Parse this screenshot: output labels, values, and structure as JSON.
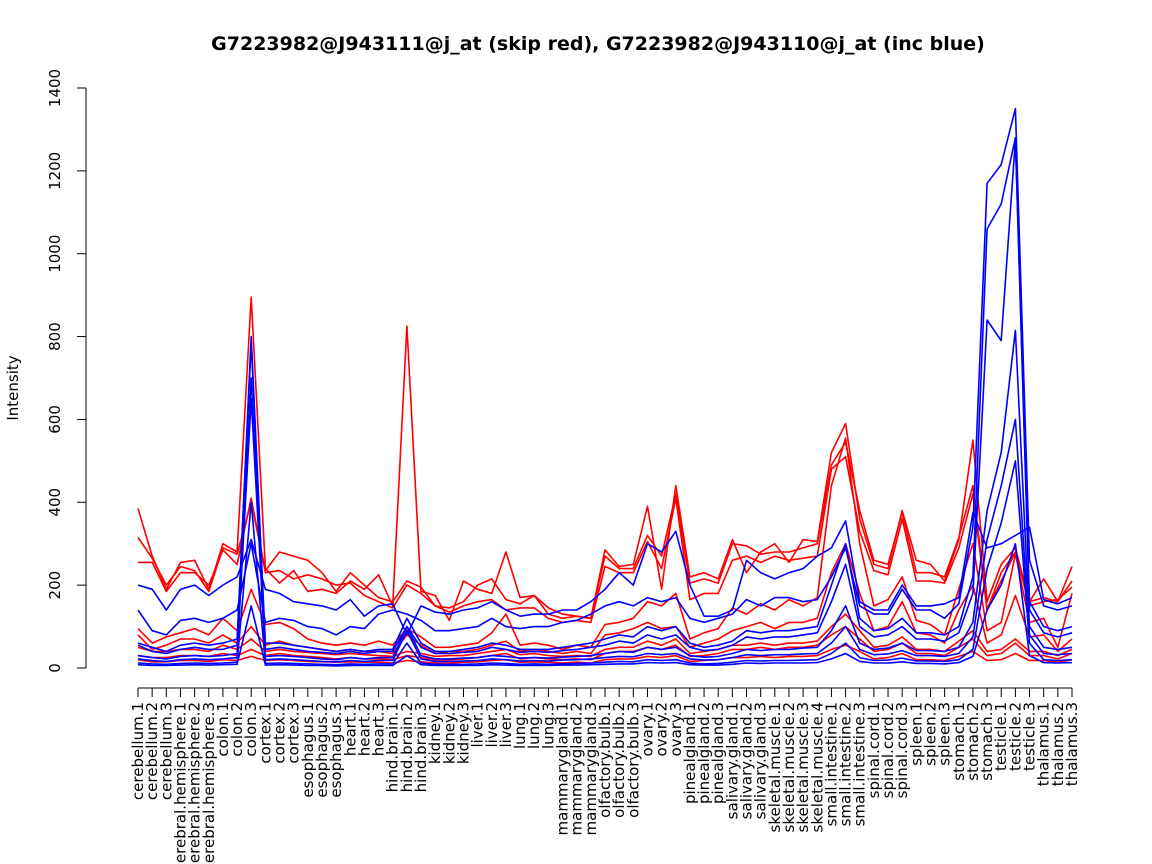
{
  "chart_data": {
    "type": "line",
    "title": "G7223982@J943111@j_at (skip red), G7223982@J943110@j_at (inc blue)",
    "xlabel": "",
    "ylabel": "Intensity",
    "ylim": [
      0,
      1400
    ],
    "yticks": [
      0,
      200,
      400,
      600,
      800,
      1000,
      1200,
      1400
    ],
    "grid": false,
    "legend": "none",
    "colors": {
      "skip": "#ff0000",
      "inc": "#0000ff"
    },
    "categories": [
      "cerebellum.1",
      "cerebellum.2",
      "cerebellum.3",
      "cerebral.hemisphere.1",
      "cerebral.hemisphere.2",
      "cerebral.hemisphere.3",
      "colon.1",
      "colon.2",
      "colon.3",
      "cortex.1",
      "cortex.2",
      "cortex.3",
      "esophagus.1",
      "esophagus.2",
      "esophagus.3",
      "heart.1",
      "heart.2",
      "heart.3",
      "hind.brain.1",
      "hind.brain.2",
      "hind.brain.3",
      "kidney.1",
      "kidney.2",
      "kidney.3",
      "liver.1",
      "liver.2",
      "liver.3",
      "lung.1",
      "lung.2",
      "lung.3",
      "mammarygland.1",
      "mammarygland.2",
      "mammarygland.3",
      "olfactory.bulb.1",
      "olfactory.bulb.2",
      "olfactory.bulb.3",
      "ovary.1",
      "ovary.2",
      "ovary.3",
      "pinealgland.1",
      "pinealgland.2",
      "pinealgland.3",
      "salivary.gland.1",
      "salivary.gland.2",
      "salivary.gland.3",
      "skeletal.muscle.1",
      "skeletal.muscle.2",
      "skeletal.muscle.3",
      "skeletal.muscle.4",
      "small.intestine.1",
      "small.intestine.2",
      "small.intestine.3",
      "spinal.cord.1",
      "spinal.cord.2",
      "spinal.cord.3",
      "spleen.1",
      "spleen.2",
      "spleen.3",
      "stomach.1",
      "stomach.2",
      "stomach.3",
      "testicle.1",
      "testicle.2",
      "testicle.3",
      "thalamus.1",
      "thalamus.2",
      "thalamus.3"
    ],
    "series": [
      {
        "group": "skip",
        "values": [
          385,
          270,
          190,
          255,
          260,
          190,
          300,
          280,
          895,
          240,
          205,
          235,
          185,
          190,
          180,
          210,
          190,
          225,
          150,
          825,
          185,
          175,
          115,
          210,
          190,
          180,
          280,
          170,
          175,
          130,
          120,
          125,
          120,
          285,
          245,
          250,
          390,
          190,
          440,
          220,
          230,
          215,
          310,
          230,
          280,
          300,
          255,
          310,
          305,
          520,
          590,
          360,
          250,
          240,
          380,
          260,
          250,
          210,
          310,
          550,
          160,
          250,
          290,
          160,
          215,
          160,
          245
        ]
      },
      {
        "group": "skip",
        "values": [
          315,
          265,
          200,
          245,
          235,
          185,
          290,
          275,
          400,
          235,
          280,
          270,
          260,
          230,
          185,
          230,
          200,
          170,
          160,
          210,
          195,
          150,
          145,
          160,
          200,
          215,
          165,
          155,
          175,
          145,
          130,
          125,
          120,
          270,
          240,
          240,
          320,
          270,
          420,
          205,
          215,
          205,
          300,
          295,
          275,
          280,
          280,
          290,
          300,
          490,
          545,
          380,
          260,
          250,
          375,
          230,
          230,
          220,
          315,
          440,
          140,
          230,
          280,
          160,
          170,
          160,
          210
        ]
      },
      {
        "group": "skip",
        "values": [
          255,
          255,
          185,
          230,
          230,
          200,
          285,
          250,
          410,
          230,
          235,
          215,
          225,
          215,
          200,
          205,
          175,
          160,
          145,
          200,
          180,
          150,
          135,
          150,
          160,
          165,
          140,
          145,
          145,
          120,
          110,
          115,
          110,
          245,
          230,
          230,
          305,
          240,
          410,
          165,
          180,
          180,
          260,
          270,
          255,
          270,
          260,
          265,
          270,
          480,
          510,
          330,
          235,
          225,
          360,
          210,
          210,
          205,
          290,
          420,
          140,
          210,
          280,
          150,
          160,
          165,
          195
        ]
      },
      {
        "group": "skip",
        "values": [
          95,
          60,
          75,
          85,
          95,
          80,
          120,
          90,
          190,
          105,
          110,
          95,
          70,
          60,
          55,
          60,
          55,
          65,
          55,
          95,
          75,
          50,
          50,
          55,
          60,
          85,
          130,
          55,
          60,
          55,
          45,
          55,
          50,
          105,
          110,
          120,
          160,
          150,
          180,
          70,
          85,
          95,
          145,
          130,
          155,
          140,
          165,
          150,
          170,
          440,
          555,
          300,
          150,
          165,
          220,
          115,
          105,
          80,
          190,
          300,
          90,
          110,
          275,
          110,
          120,
          50,
          180
        ]
      },
      {
        "group": "skip",
        "values": [
          80,
          45,
          55,
          70,
          70,
          60,
          80,
          60,
          100,
          55,
          65,
          55,
          50,
          45,
          40,
          45,
          40,
          40,
          35,
          80,
          55,
          35,
          40,
          40,
          45,
          55,
          65,
          40,
          45,
          40,
          35,
          40,
          35,
          80,
          85,
          95,
          110,
          95,
          100,
          50,
          60,
          70,
          90,
          100,
          110,
          95,
          110,
          110,
          120,
          230,
          300,
          180,
          90,
          100,
          160,
          85,
          80,
          60,
          140,
          200,
          60,
          80,
          175,
          75,
          80,
          40,
          70
        ]
      },
      {
        "group": "skip",
        "values": [
          30,
          25,
          25,
          30,
          30,
          28,
          35,
          30,
          45,
          30,
          35,
          30,
          28,
          25,
          22,
          25,
          22,
          22,
          20,
          30,
          25,
          20,
          20,
          22,
          25,
          30,
          35,
          22,
          25,
          22,
          20,
          22,
          20,
          35,
          40,
          40,
          50,
          45,
          55,
          28,
          30,
          35,
          45,
          45,
          50,
          45,
          50,
          50,
          55,
          80,
          100,
          70,
          40,
          45,
          60,
          35,
          35,
          30,
          50,
          70,
          30,
          35,
          60,
          30,
          30,
          22,
          35
        ]
      },
      {
        "group": "skip",
        "values": [
          50,
          40,
          40,
          45,
          45,
          40,
          55,
          45,
          70,
          40,
          45,
          40,
          38,
          35,
          32,
          35,
          32,
          30,
          28,
          40,
          35,
          28,
          30,
          30,
          35,
          40,
          45,
          32,
          35,
          30,
          28,
          30,
          28,
          45,
          50,
          50,
          65,
          55,
          70,
          35,
          40,
          45,
          55,
          55,
          60,
          55,
          60,
          60,
          65,
          100,
          130,
          90,
          50,
          55,
          75,
          45,
          45,
          40,
          65,
          90,
          40,
          45,
          70,
          40,
          40,
          30,
          45
        ]
      },
      {
        "group": "skip",
        "values": [
          20,
          15,
          15,
          18,
          18,
          16,
          20,
          18,
          28,
          18,
          20,
          18,
          16,
          15,
          14,
          15,
          14,
          14,
          12,
          18,
          15,
          12,
          12,
          14,
          15,
          18,
          20,
          14,
          15,
          14,
          12,
          14,
          12,
          20,
          22,
          22,
          28,
          25,
          30,
          16,
          18,
          20,
          25,
          25,
          28,
          25,
          28,
          28,
          30,
          45,
          55,
          40,
          22,
          25,
          35,
          20,
          20,
          18,
          28,
          40,
          18,
          20,
          35,
          18,
          18,
          14,
          20
        ]
      },
      {
        "group": "inc",
        "values": [
          200,
          190,
          140,
          190,
          200,
          175,
          200,
          220,
          310,
          190,
          180,
          160,
          155,
          150,
          140,
          165,
          125,
          150,
          155,
          80,
          150,
          135,
          130,
          140,
          145,
          160,
          140,
          125,
          130,
          130,
          140,
          140,
          160,
          190,
          230,
          200,
          300,
          280,
          330,
          200,
          125,
          125,
          140,
          260,
          230,
          215,
          230,
          240,
          270,
          290,
          355,
          160,
          140,
          140,
          200,
          150,
          150,
          155,
          170,
          375,
          290,
          300,
          320,
          340,
          165,
          155,
          170
        ]
      },
      {
        "group": "inc",
        "values": [
          140,
          90,
          80,
          115,
          120,
          110,
          120,
          140,
          300,
          110,
          120,
          115,
          100,
          95,
          80,
          100,
          95,
          130,
          140,
          130,
          115,
          90,
          90,
          95,
          100,
          120,
          100,
          95,
          100,
          100,
          110,
          115,
          130,
          150,
          160,
          150,
          170,
          160,
          170,
          120,
          110,
          120,
          130,
          165,
          150,
          170,
          170,
          160,
          165,
          220,
          290,
          150,
          130,
          130,
          190,
          140,
          140,
          120,
          155,
          340,
          1170,
          1215,
          1350,
          260,
          150,
          140,
          150
        ]
      },
      {
        "group": "inc",
        "values": [
          60,
          50,
          40,
          55,
          60,
          55,
          60,
          70,
          785,
          60,
          60,
          55,
          50,
          45,
          40,
          45,
          40,
          45,
          45,
          120,
          60,
          40,
          40,
          45,
          50,
          60,
          55,
          45,
          45,
          45,
          50,
          55,
          60,
          70,
          80,
          75,
          100,
          90,
          100,
          60,
          50,
          55,
          65,
          90,
          85,
          90,
          90,
          95,
          100,
          200,
          300,
          120,
          90,
          95,
          120,
          85,
          85,
          80,
          100,
          220,
          1060,
          1120,
          1280,
          160,
          100,
          90,
          100
        ]
      },
      {
        "group": "inc",
        "values": [
          55,
          40,
          35,
          45,
          50,
          45,
          45,
          55,
          800,
          45,
          50,
          45,
          40,
          38,
          35,
          40,
          35,
          40,
          40,
          100,
          50,
          35,
          35,
          38,
          40,
          50,
          45,
          38,
          40,
          38,
          42,
          45,
          50,
          55,
          65,
          60,
          80,
          70,
          80,
          50,
          42,
          45,
          55,
          75,
          70,
          75,
          75,
          80,
          85,
          160,
          250,
          100,
          75,
          80,
          100,
          70,
          70,
          65,
          85,
          180,
          840,
          790,
          1275,
          140,
          85,
          75,
          85
        ]
      },
      {
        "group": "inc",
        "values": [
          30,
          25,
          22,
          28,
          30,
          28,
          30,
          35,
          650,
          28,
          30,
          28,
          25,
          22,
          20,
          25,
          22,
          25,
          25,
          100,
          30,
          22,
          22,
          24,
          25,
          30,
          28,
          24,
          25,
          24,
          26,
          28,
          30,
          35,
          40,
          38,
          50,
          45,
          50,
          30,
          26,
          28,
          35,
          45,
          42,
          45,
          45,
          48,
          50,
          90,
          150,
          60,
          45,
          48,
          60,
          42,
          42,
          40,
          50,
          110,
          380,
          520,
          815,
          100,
          50,
          45,
          50
        ]
      },
      {
        "group": "inc",
        "values": [
          22,
          18,
          16,
          20,
          22,
          20,
          22,
          25,
          700,
          20,
          22,
          20,
          18,
          16,
          15,
          18,
          16,
          18,
          18,
          90,
          22,
          16,
          16,
          17,
          18,
          22,
          20,
          17,
          18,
          17,
          19,
          20,
          22,
          25,
          28,
          27,
          35,
          32,
          35,
          22,
          19,
          20,
          25,
          32,
          30,
          32,
          32,
          34,
          35,
          60,
          100,
          45,
          32,
          34,
          42,
          30,
          30,
          28,
          35,
          75,
          310,
          440,
          600,
          80,
          35,
          32,
          35
        ]
      },
      {
        "group": "inc",
        "values": [
          12,
          10,
          9,
          11,
          12,
          11,
          12,
          14,
          400,
          11,
          12,
          11,
          10,
          9,
          8,
          10,
          9,
          10,
          10,
          60,
          12,
          9,
          9,
          9,
          10,
          12,
          11,
          9,
          10,
          9,
          10,
          11,
          12,
          14,
          16,
          15,
          20,
          18,
          20,
          12,
          10,
          11,
          14,
          18,
          17,
          18,
          18,
          19,
          20,
          35,
          60,
          25,
          18,
          19,
          24,
          17,
          17,
          16,
          20,
          45,
          240,
          350,
          500,
          60,
          20,
          18,
          20
        ]
      },
      {
        "group": "inc",
        "values": [
          8,
          6,
          6,
          7,
          8,
          7,
          8,
          9,
          150,
          7,
          8,
          7,
          6,
          6,
          5,
          6,
          6,
          6,
          6,
          30,
          8,
          6,
          6,
          6,
          6,
          8,
          7,
          6,
          6,
          6,
          7,
          7,
          8,
          9,
          10,
          10,
          13,
          12,
          13,
          8,
          7,
          7,
          9,
          12,
          11,
          12,
          12,
          12,
          13,
          22,
          35,
          16,
          12,
          12,
          15,
          11,
          11,
          10,
          13,
          28,
          140,
          200,
          300,
          30,
          13,
          12,
          13
        ]
      }
    ]
  }
}
